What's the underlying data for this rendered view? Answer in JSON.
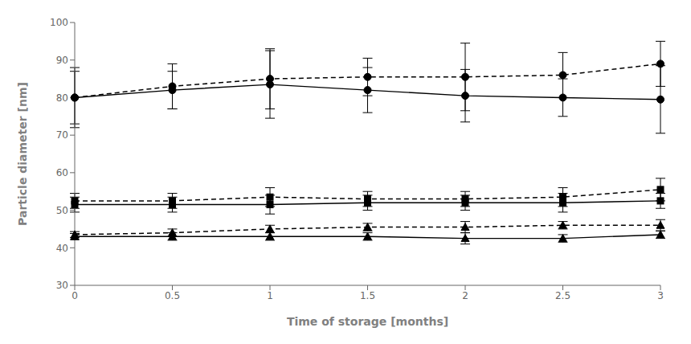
{
  "chart_data": {
    "type": "line",
    "xlabel": "Time of storage [months]",
    "ylabel": "Particle diameter [nm]",
    "x": [
      0,
      0.5,
      1,
      1.5,
      2,
      2.5,
      3
    ],
    "xlim": [
      0,
      3
    ],
    "xticks": [
      0,
      0.5,
      1,
      1.5,
      2,
      2.5,
      3
    ],
    "ylim": [
      30,
      100
    ],
    "yticks": [
      30,
      40,
      50,
      60,
      70,
      80,
      90,
      100
    ],
    "grid": false,
    "color": "black",
    "series": [
      {
        "marker": "circle",
        "line_style": "solid",
        "values": [
          80,
          82,
          83.5,
          82,
          80.5,
          80,
          79.5
        ],
        "errors": [
          7,
          5,
          9,
          6,
          7,
          5,
          9
        ]
      },
      {
        "marker": "circle",
        "line_style": "dashed",
        "values": [
          80,
          83,
          85,
          85.5,
          85.5,
          86,
          89
        ],
        "errors": [
          8,
          6,
          8,
          5,
          9,
          6,
          6
        ]
      },
      {
        "marker": "square",
        "line_style": "solid",
        "values": [
          51.5,
          51.5,
          51.5,
          52,
          52,
          52,
          52.5
        ],
        "errors": [
          2.0,
          2.0,
          2.5,
          2.0,
          2.0,
          2.5,
          2.0
        ]
      },
      {
        "marker": "square",
        "line_style": "dashed",
        "values": [
          52.5,
          52.5,
          53.5,
          53.0,
          53.0,
          53.5,
          55.5
        ],
        "errors": [
          2.0,
          2.0,
          2.5,
          2.0,
          2.0,
          2.5,
          3.0
        ]
      },
      {
        "marker": "triangle",
        "line_style": "solid",
        "values": [
          43.0,
          43.0,
          43.0,
          43.0,
          42.5,
          42.5,
          43.5
        ],
        "errors": [
          0.8,
          1.0,
          1.0,
          1.0,
          1.5,
          1.0,
          1.0
        ]
      },
      {
        "marker": "triangle",
        "line_style": "dashed",
        "values": [
          43.5,
          44.0,
          45.0,
          45.5,
          45.5,
          46.0,
          46.0
        ],
        "errors": [
          0.8,
          1.0,
          1.0,
          1.0,
          1.5,
          1.0,
          1.5
        ]
      }
    ]
  }
}
